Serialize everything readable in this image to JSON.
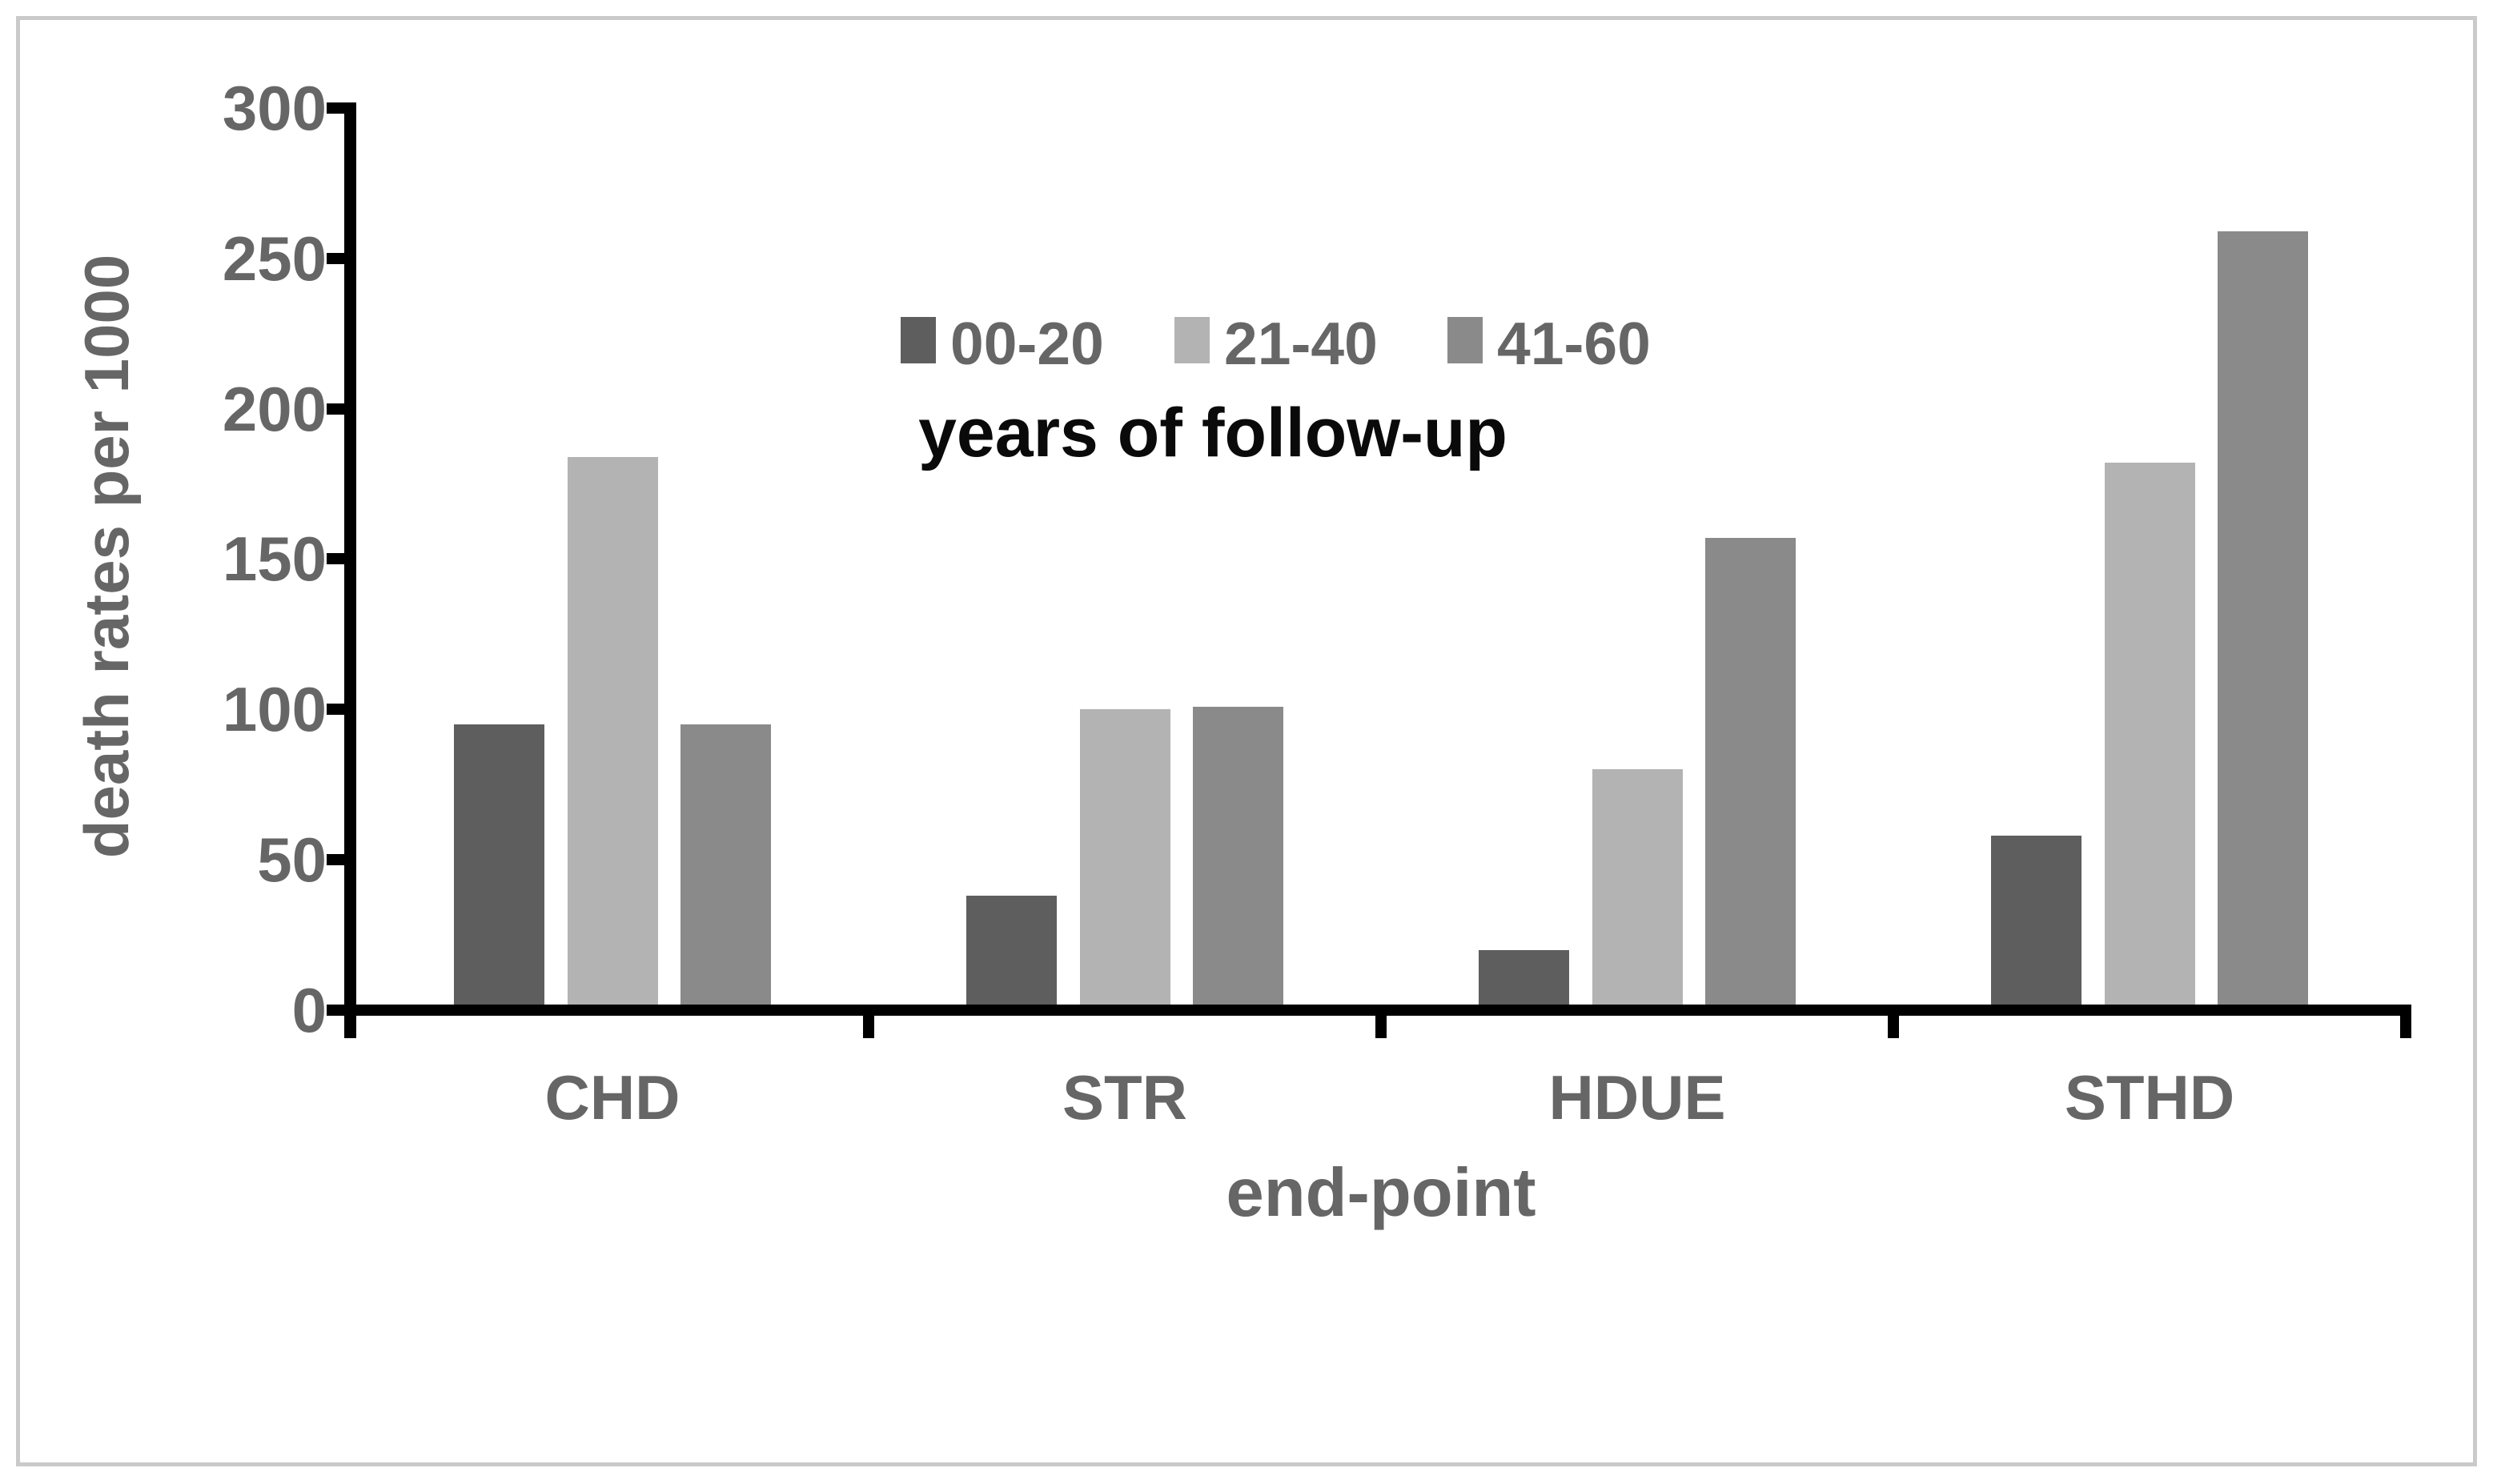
{
  "chart_data": {
    "type": "bar",
    "title": "",
    "categories": [
      "CHD",
      "STR",
      "HDUE",
      "STHD"
    ],
    "series": [
      {
        "name": "00-20",
        "color": "#5e5e5e",
        "values": [
          95,
          38,
          20,
          58
        ]
      },
      {
        "name": "21-40",
        "color": "#b3b3b3",
        "values": [
          184,
          100,
          80,
          182
        ]
      },
      {
        "name": "41-60",
        "color": "#8a8a8a",
        "values": [
          95,
          101,
          157,
          259
        ]
      }
    ],
    "legend_title": "years of follow-up",
    "xlabel": "end-point",
    "ylabel": "death rates per 1000",
    "ylim": [
      0,
      300
    ],
    "yticks": [
      0,
      50,
      100,
      150,
      200,
      250,
      300
    ],
    "legend_position": "top-center-inside",
    "grid": false
  },
  "colors": {
    "axis": "#000000",
    "label_text": "#666666",
    "legend_title_text": "#0a0a0a",
    "frame_border": "#cacaca",
    "background": "#ffffff"
  }
}
